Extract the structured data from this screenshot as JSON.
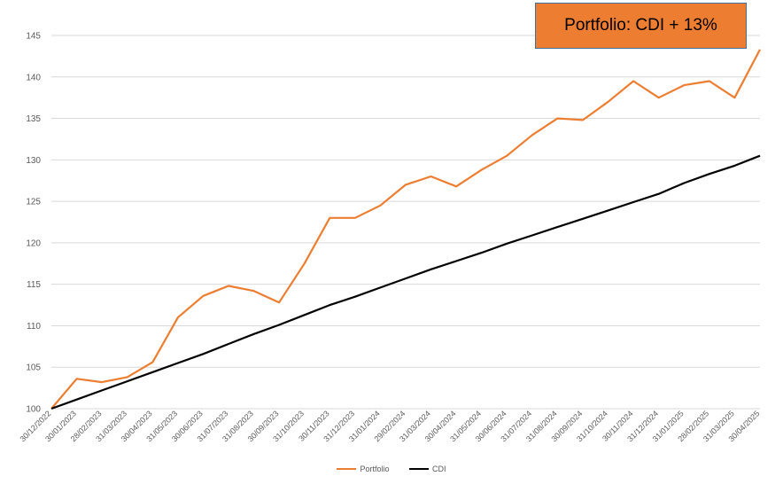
{
  "badge": {
    "text": "Portfolio: CDI + 13%"
  },
  "colors": {
    "portfolio": "#ed7d31",
    "cdi": "#000000",
    "grid": "#d9d9d9",
    "axis_text": "#595959"
  },
  "chart_data": {
    "type": "line",
    "title": "",
    "xlabel": "",
    "ylabel": "",
    "ylim": [
      100,
      145
    ],
    "yticks": [
      100,
      105,
      110,
      115,
      120,
      125,
      130,
      135,
      140,
      145
    ],
    "grid": true,
    "legend": "bottom",
    "x_tick_labels": [
      "30/12/2022",
      "30/01/2023",
      "28/02/2023",
      "31/03/2023",
      "30/04/2023",
      "31/05/2023",
      "30/06/2023",
      "31/07/2023",
      "31/08/2023",
      "30/09/2023",
      "31/10/2023",
      "30/11/2023",
      "31/12/2023",
      "31/01/2024",
      "29/02/2024",
      "31/03/2024",
      "30/04/2024",
      "31/05/2024",
      "30/06/2024",
      "31/07/2024",
      "31/08/2024",
      "30/09/2024",
      "31/10/2024",
      "30/11/2024",
      "31/12/2024",
      "31/01/2025",
      "28/02/2025",
      "31/03/2025",
      "30/04/2025"
    ],
    "series": [
      {
        "name": "Portfolio",
        "values": [
          100.0,
          103.6,
          103.2,
          103.8,
          105.6,
          111.0,
          113.6,
          114.8,
          114.2,
          112.8,
          117.5,
          123.0,
          123.0,
          124.5,
          127.0,
          128.0,
          126.8,
          128.8,
          130.5,
          133.0,
          135.0,
          134.8,
          137.0,
          139.5,
          137.5,
          139.0,
          139.5,
          137.5,
          143.3
        ]
      },
      {
        "name": "CDI",
        "values": [
          100.0,
          101.1,
          102.2,
          103.3,
          104.4,
          105.5,
          106.6,
          107.8,
          109.0,
          110.1,
          111.3,
          112.5,
          113.5,
          114.6,
          115.7,
          116.8,
          117.8,
          118.8,
          119.9,
          120.9,
          121.9,
          122.9,
          123.9,
          124.9,
          125.9,
          127.2,
          128.3,
          129.3,
          130.5
        ]
      }
    ]
  }
}
